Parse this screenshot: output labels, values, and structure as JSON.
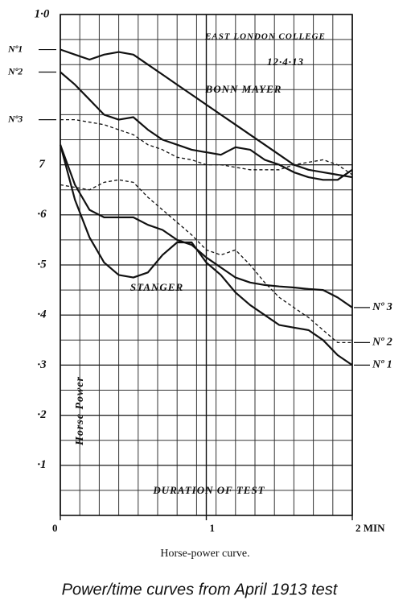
{
  "chart_data": {
    "type": "line",
    "annotations": [
      "East London College",
      "12·4·13",
      "Bonn Mayer",
      "Stanger",
      "Duration of Test"
    ],
    "ylabel": "Horse Power",
    "xlabel": "Horse-power curve.",
    "caption": "Power/time curves from April 1913 test",
    "x": [
      0,
      0.1,
      0.2,
      0.3,
      0.4,
      0.5,
      0.6,
      0.7,
      0.8,
      0.9,
      1,
      1.1,
      1.2,
      1.3,
      1.4,
      1.5,
      1.6,
      1.7,
      1.8,
      1.9,
      2
    ],
    "xlim": [
      0,
      2
    ],
    "xticks": [
      0,
      1,
      {
        "value": 2,
        "label": "2 MIN"
      }
    ],
    "ylim": [
      0,
      1
    ],
    "yticks": [
      {
        "value": 1,
        "label": "1·0"
      },
      {
        "value": 0.7,
        "label": "7"
      },
      {
        "value": 0.6,
        "label": "·6"
      },
      {
        "value": 0.5,
        "label": "·5"
      },
      {
        "value": 0.4,
        "label": "·4"
      },
      {
        "value": 0.3,
        "label": "·3"
      },
      {
        "value": 0.2,
        "label": "·2"
      },
      {
        "value": 0.1,
        "label": "·1"
      }
    ],
    "grid": true,
    "series": [
      {
        "name": "Nº1",
        "color": "#111111",
        "dashed": false,
        "label_side": "left",
        "values": [
          0.93,
          0.92,
          0.91,
          0.92,
          0.925,
          0.92,
          0.9,
          0.88,
          0.86,
          0.84,
          0.82,
          0.8,
          0.78,
          0.76,
          0.74,
          0.72,
          0.7,
          0.69,
          0.685,
          0.68,
          0.675
        ]
      },
      {
        "name": "Nº2",
        "color": "#111111",
        "dashed": false,
        "label_side": "left",
        "values": [
          0.885,
          0.86,
          0.83,
          0.8,
          0.79,
          0.795,
          0.77,
          0.75,
          0.74,
          0.73,
          0.725,
          0.72,
          0.735,
          0.73,
          0.71,
          0.7,
          0.685,
          0.675,
          0.67,
          0.67,
          0.69
        ]
      },
      {
        "name": "Nº3",
        "color": "#111111",
        "dashed": true,
        "label_side": "left",
        "values": [
          0.79,
          0.79,
          0.785,
          0.78,
          0.77,
          0.76,
          0.74,
          0.73,
          0.715,
          0.71,
          0.7,
          0.7,
          0.695,
          0.69,
          0.69,
          0.69,
          0.7,
          0.705,
          0.71,
          0.7,
          0.68
        ]
      },
      {
        "name": "Nº 1",
        "color": "#111111",
        "dashed": false,
        "label_side": "right",
        "values": [
          0.74,
          0.63,
          0.555,
          0.505,
          0.48,
          0.475,
          0.485,
          0.52,
          0.545,
          0.545,
          0.505,
          0.48,
          0.445,
          0.42,
          0.4,
          0.38,
          0.375,
          0.37,
          0.35,
          0.32,
          0.3
        ]
      },
      {
        "name": "Nº 2",
        "color": "#111111",
        "dashed": true,
        "label_side": "right",
        "values": [
          0.66,
          0.655,
          0.65,
          0.665,
          0.67,
          0.665,
          0.635,
          0.61,
          0.585,
          0.56,
          0.53,
          0.52,
          0.53,
          0.5,
          0.465,
          0.435,
          0.415,
          0.395,
          0.37,
          0.345,
          0.345
        ]
      },
      {
        "name": "Nº 3",
        "color": "#111111",
        "dashed": false,
        "label_side": "right",
        "values": [
          0.74,
          0.66,
          0.61,
          0.595,
          0.595,
          0.595,
          0.58,
          0.57,
          0.55,
          0.54,
          0.515,
          0.495,
          0.475,
          0.465,
          0.46,
          0.457,
          0.455,
          0.452,
          0.45,
          0.435,
          0.415
        ]
      }
    ]
  }
}
